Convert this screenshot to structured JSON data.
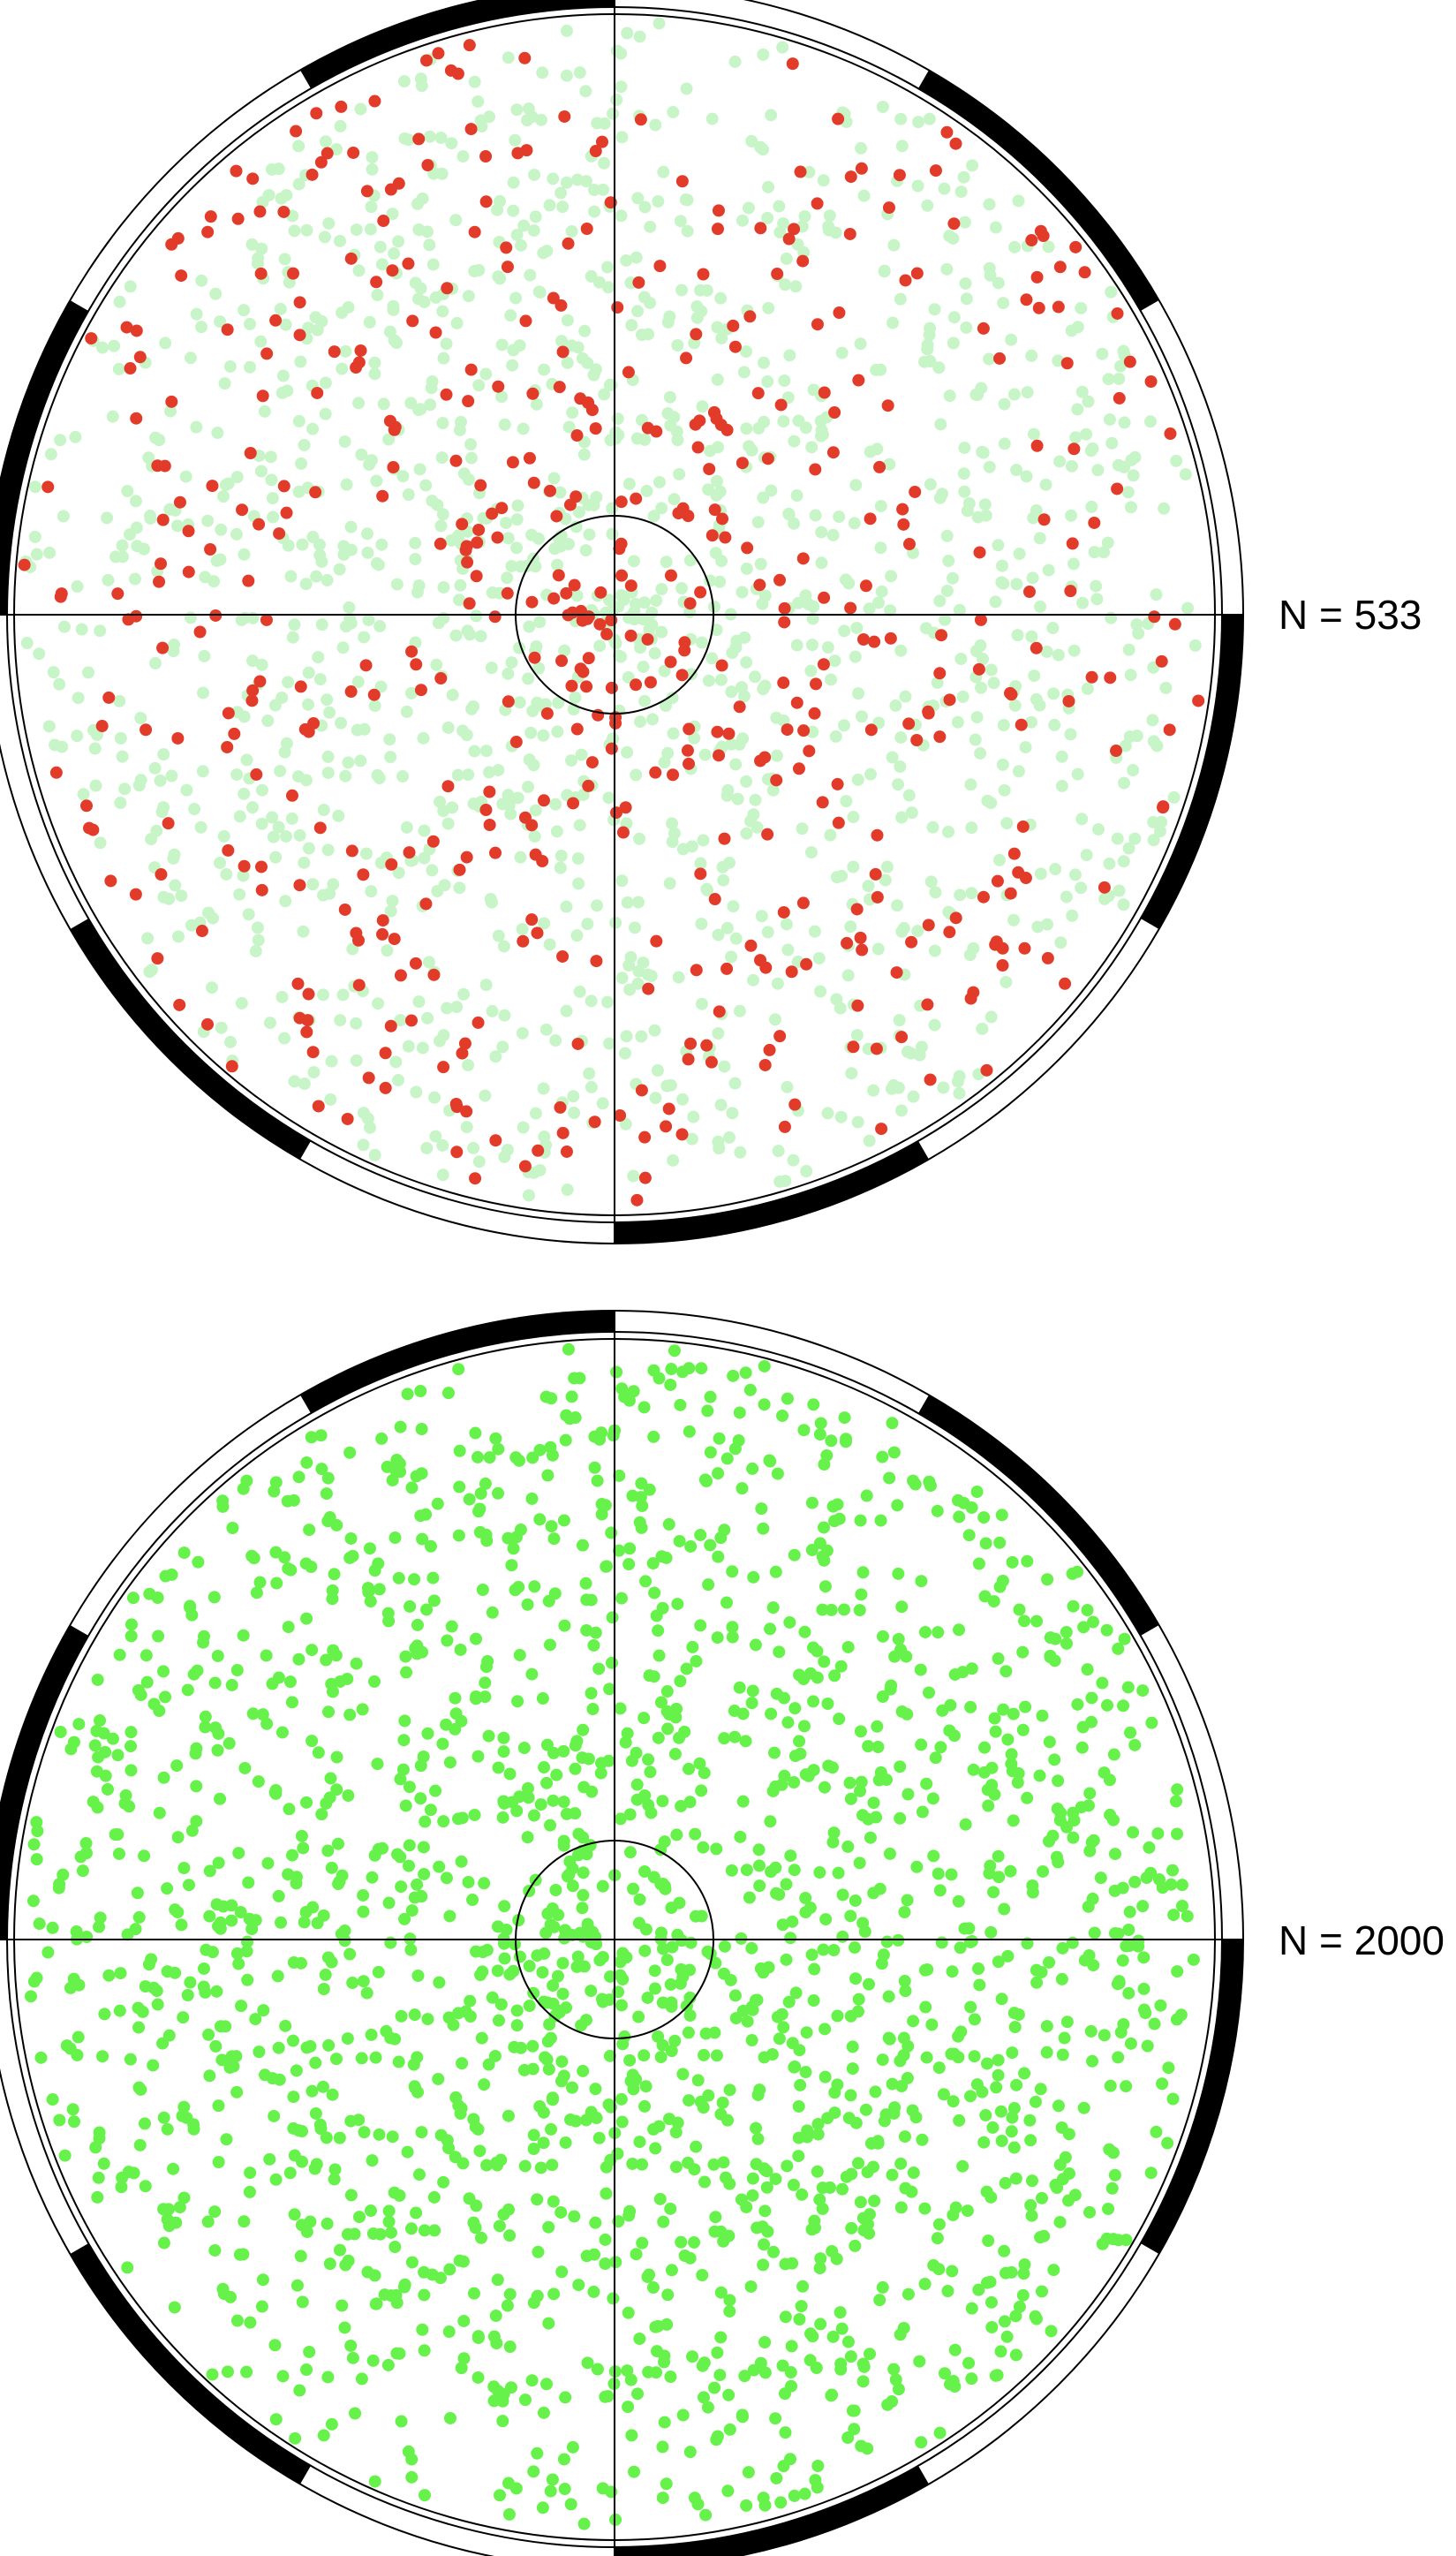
{
  "chart_data": [
    {
      "type": "scatter",
      "projection": "polar",
      "label": "N = 533",
      "n": 533,
      "background_point_color": "#c8f5c8",
      "background_points_count": 1467,
      "highlight_point_color": "#e23b2a",
      "highlight_points_count": 533,
      "center_circle": true,
      "crosshair": true,
      "outer_ring": "alternating black/white segments",
      "seed": 7
    },
    {
      "type": "scatter",
      "projection": "polar",
      "label": "N = 2000",
      "n": 2000,
      "point_color": "#66f24a",
      "points_count": 2000,
      "center_circle": true,
      "crosshair": true,
      "outer_ring": "alternating black/white segments",
      "seed": 13
    }
  ]
}
